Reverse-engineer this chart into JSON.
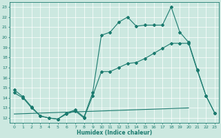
{
  "xlabel": "Humidex (Indice chaleur)",
  "xlim": [
    -0.5,
    23.5
  ],
  "ylim": [
    11.5,
    23.5
  ],
  "yticks": [
    12,
    13,
    14,
    15,
    16,
    17,
    18,
    19,
    20,
    21,
    22,
    23
  ],
  "xticks": [
    0,
    1,
    2,
    3,
    4,
    5,
    6,
    7,
    8,
    9,
    10,
    11,
    12,
    13,
    14,
    15,
    16,
    17,
    18,
    19,
    20,
    21,
    22,
    23
  ],
  "bg_color": "#cce8e0",
  "line_color": "#1a7a6e",
  "curve1_x": [
    0,
    1,
    2,
    3,
    4,
    5,
    6,
    7,
    8,
    9,
    10,
    11,
    12,
    13,
    14,
    15,
    16,
    17,
    18,
    19,
    20,
    21,
    22,
    23
  ],
  "curve1_y": [
    14.8,
    14.1,
    13.1,
    12.2,
    12.0,
    11.9,
    12.5,
    12.8,
    12.1,
    14.5,
    20.2,
    20.5,
    21.5,
    22.0,
    21.1,
    21.2,
    21.2,
    21.2,
    23.0,
    20.5,
    19.5,
    16.8,
    14.2,
    12.5
  ],
  "curve2_x": [
    0,
    1,
    2,
    3,
    4,
    5,
    6,
    7,
    8,
    9,
    10,
    11,
    12,
    13,
    14,
    15,
    16,
    17,
    18,
    19,
    20,
    21,
    22,
    23
  ],
  "curve2_y": [
    14.5,
    14.0,
    13.0,
    12.2,
    12.0,
    11.9,
    12.4,
    12.7,
    12.0,
    14.2,
    16.6,
    16.6,
    17.0,
    17.4,
    17.5,
    17.9,
    18.4,
    18.9,
    19.4,
    19.4,
    19.4,
    16.7,
    14.2,
    12.5
  ],
  "curve3_x": [
    0,
    20
  ],
  "curve3_y": [
    12.4,
    13.0
  ]
}
